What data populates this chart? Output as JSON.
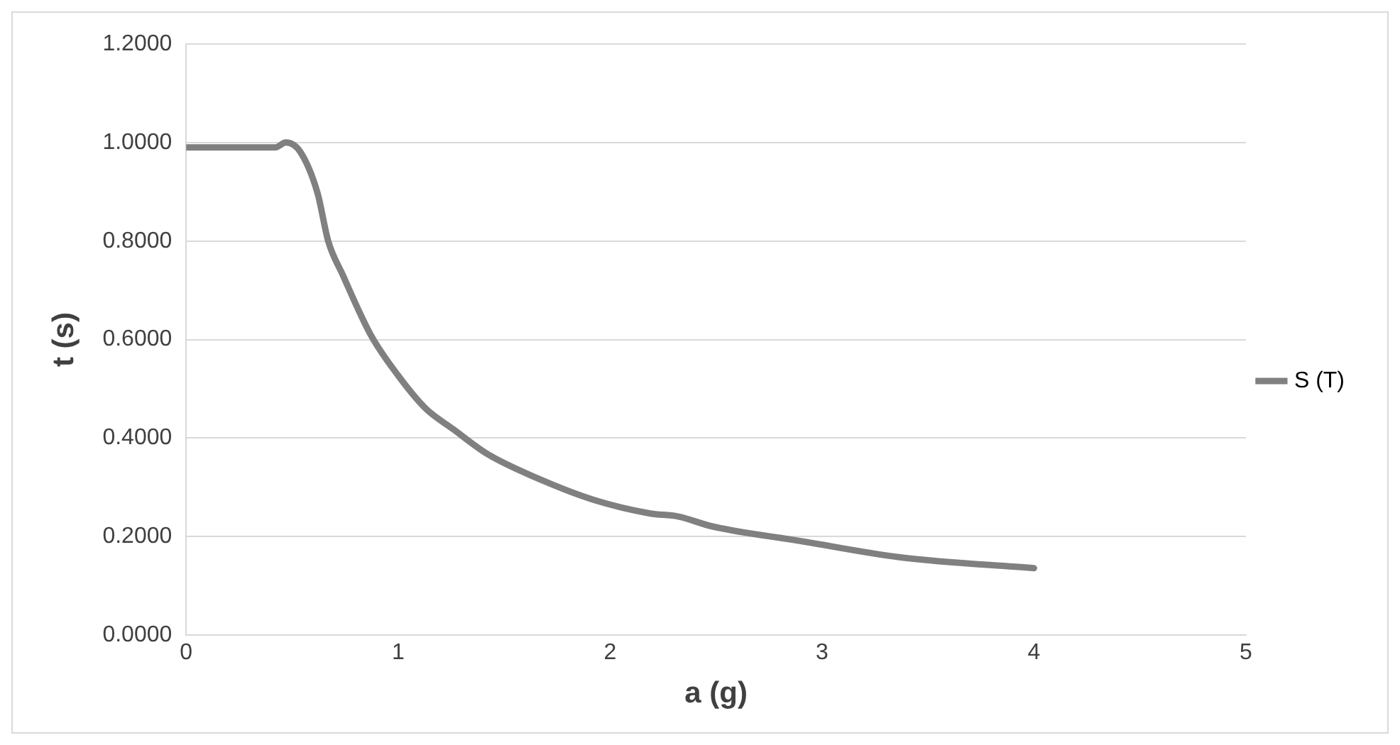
{
  "chart_data": {
    "type": "line",
    "xlabel": "a (g)",
    "ylabel": "t (s)",
    "series": [
      {
        "name": "S (T)",
        "color": "#808080",
        "x": [
          0,
          0.2,
          0.42,
          0.47,
          0.54,
          0.62,
          0.67,
          0.74,
          0.87,
          1.0,
          1.13,
          1.26,
          1.42,
          1.66,
          1.92,
          2.19,
          2.32,
          2.48,
          2.9,
          3.37,
          4.0
        ],
        "values": [
          0.99,
          0.99,
          0.99,
          1.0,
          0.98,
          0.897,
          0.8,
          0.73,
          0.61,
          0.527,
          0.46,
          0.418,
          0.368,
          0.318,
          0.275,
          0.247,
          0.241,
          0.221,
          0.191,
          0.158,
          0.136
        ]
      }
    ],
    "xlim": [
      0,
      5
    ],
    "xticks": [
      0,
      1,
      2,
      3,
      4,
      5
    ],
    "ylim": [
      0,
      1.2
    ],
    "yticks": [
      {
        "value": 0,
        "label": "0.0000"
      },
      {
        "value": 0.2,
        "label": "0.2000"
      },
      {
        "value": 0.4,
        "label": "0.4000"
      },
      {
        "value": 0.6,
        "label": "0.6000"
      },
      {
        "value": 0.8,
        "label": "0.8000"
      },
      {
        "value": 1.0,
        "label": "1.0000"
      },
      {
        "value": 1.2,
        "label": "1.2000"
      }
    ],
    "grid": "y",
    "legend": "right",
    "marker": "none",
    "line_style": "solid"
  }
}
